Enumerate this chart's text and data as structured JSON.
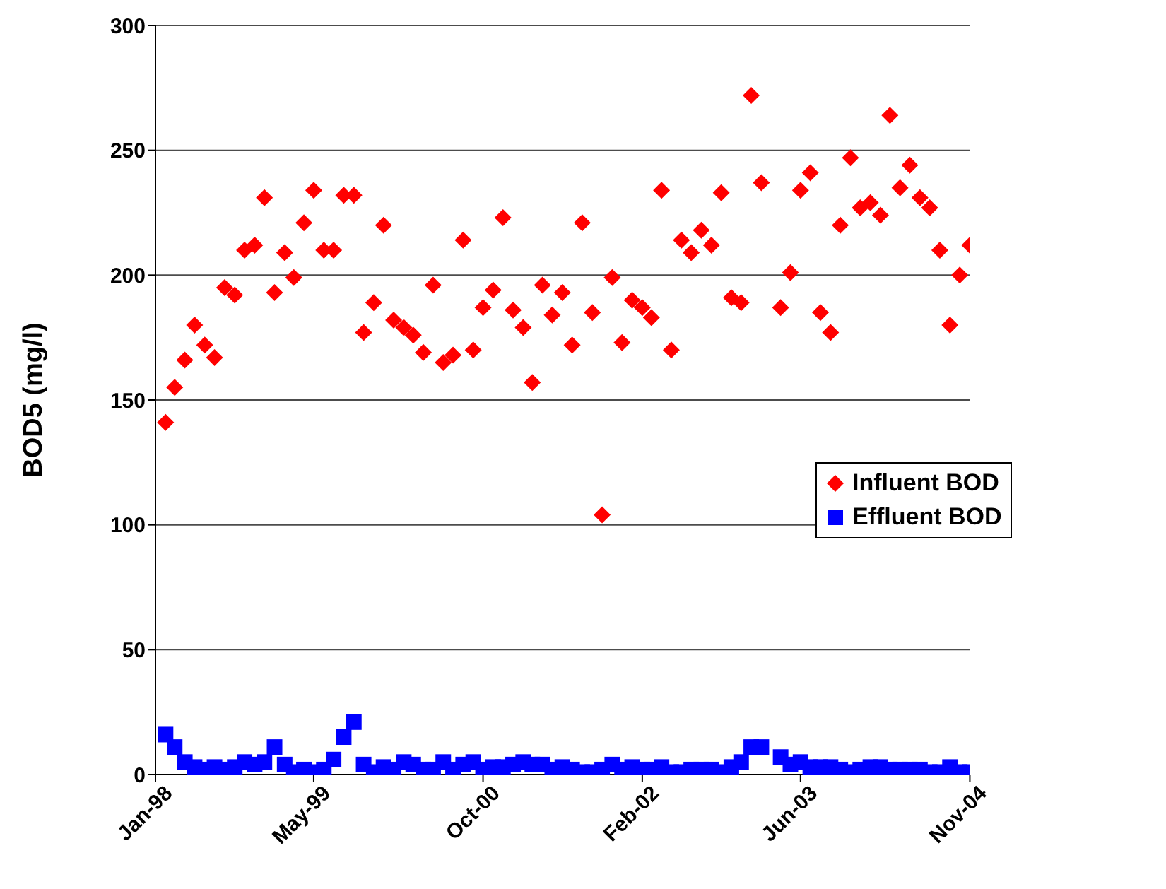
{
  "chart_data": {
    "type": "scatter",
    "ylabel": "BOD5 (mg/l)",
    "xlim": [
      "1998-01",
      "2004-11"
    ],
    "xticks": [
      {
        "value": "1998-01",
        "label": "Jan-98"
      },
      {
        "value": "1999-05",
        "label": "May-99"
      },
      {
        "value": "2000-10",
        "label": "Oct-00"
      },
      {
        "value": "2002-02",
        "label": "Feb-02"
      },
      {
        "value": "2003-06",
        "label": "Jun-03"
      },
      {
        "value": "2004-11",
        "label": "Nov-04"
      }
    ],
    "ylim": [
      0,
      300
    ],
    "yticks": [
      0,
      50,
      100,
      150,
      200,
      250,
      300
    ],
    "grid": "y",
    "legend": "right",
    "x": [
      "1998-02",
      "1998-03",
      "1998-04",
      "1998-05",
      "1998-06",
      "1998-07",
      "1998-08",
      "1998-09",
      "1998-10",
      "1998-11",
      "1998-12",
      "1999-01",
      "1999-02",
      "1999-03",
      "1999-04",
      "1999-05",
      "1999-06",
      "1999-07",
      "1999-08",
      "1999-09",
      "1999-10",
      "1999-11",
      "1999-12",
      "2000-01",
      "2000-02",
      "2000-03",
      "2000-04",
      "2000-05",
      "2000-06",
      "2000-07",
      "2000-08",
      "2000-09",
      "2000-10",
      "2000-11",
      "2000-12",
      "2001-01",
      "2001-02",
      "2001-03",
      "2001-04",
      "2001-05",
      "2001-06",
      "2001-07",
      "2001-08",
      "2001-09",
      "2001-10",
      "2001-11",
      "2001-12",
      "2002-01",
      "2002-02",
      "2002-03",
      "2002-04",
      "2002-05",
      "2002-06",
      "2002-07",
      "2002-08",
      "2002-09",
      "2002-10",
      "2002-11",
      "2002-12",
      "2003-01",
      "2003-02",
      "2003-03",
      "2003-04",
      "2003-05",
      "2003-06",
      "2003-07",
      "2003-08",
      "2003-09",
      "2003-10",
      "2003-11",
      "2003-12",
      "2004-01",
      "2004-02",
      "2004-03",
      "2004-04",
      "2004-05",
      "2004-06",
      "2004-07",
      "2004-08",
      "2004-09",
      "2004-10",
      "2004-11"
    ],
    "series": [
      {
        "name": "Influent BOD",
        "color": "#ff0000",
        "marker": "diamond",
        "values": [
          141,
          155,
          166,
          180,
          172,
          167,
          195,
          192,
          210,
          212,
          231,
          193,
          209,
          199,
          221,
          234,
          210,
          210,
          232,
          232,
          177,
          189,
          220,
          182,
          179,
          176,
          169,
          196,
          165,
          168,
          214,
          170,
          187,
          194,
          223,
          186,
          179,
          157,
          196,
          184,
          193,
          172,
          221,
          185,
          104,
          199,
          173,
          190,
          187,
          183,
          234,
          170,
          214,
          209,
          218,
          212,
          233,
          191,
          189,
          272,
          237,
          null,
          187,
          201,
          234,
          241,
          185,
          177,
          220,
          247,
          227,
          229,
          224,
          264,
          235,
          244,
          231,
          227,
          210,
          180,
          200,
          212
        ]
      },
      {
        "name": "Effluent BOD",
        "color": "#0000ff",
        "marker": "square",
        "values": [
          16,
          11,
          5,
          3,
          2,
          3,
          2,
          3,
          5,
          4,
          5,
          11,
          4,
          1,
          2,
          1,
          2,
          6,
          15,
          21,
          4,
          1,
          3,
          2,
          5,
          4,
          2,
          2,
          5,
          2,
          4,
          5,
          2,
          3,
          3,
          4,
          5,
          4,
          4,
          2,
          3,
          2,
          1,
          1,
          2,
          4,
          2,
          3,
          2,
          2,
          3,
          1,
          1,
          2,
          2,
          2,
          1,
          3,
          5,
          11,
          11,
          null,
          7,
          4,
          5,
          3,
          3,
          3,
          2,
          1,
          2,
          3,
          3,
          2,
          2,
          2,
          2,
          1,
          1,
          3,
          1,
          1
        ]
      }
    ]
  }
}
